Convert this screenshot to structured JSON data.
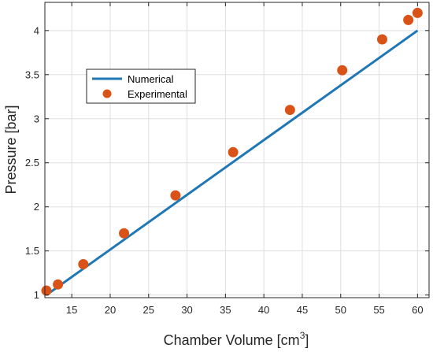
{
  "chart_data": {
    "type": "scatter",
    "xlabel": "Chamber Volume [cm",
    "xlabel_superscript": "3",
    "xlabel_suffix": "]",
    "ylabel": "Pressure [bar]",
    "xlim": [
      11.5,
      61.5
    ],
    "ylim": [
      0.97,
      4.32
    ],
    "x_ticks": [
      15,
      20,
      25,
      30,
      35,
      40,
      45,
      50,
      55,
      60
    ],
    "y_ticks": [
      1,
      1.5,
      2,
      2.5,
      3,
      3.5,
      4
    ],
    "y_tick_labels": [
      "1",
      "1.5",
      "2",
      "2.5",
      "3",
      "3.5",
      "4"
    ],
    "grid": true,
    "legend_position": "upper-left",
    "series": [
      {
        "name": "Numerical",
        "kind": "line",
        "color": "#1f77b4",
        "x": [
          11.7,
          60
        ],
        "y": [
          1.0,
          4.0
        ]
      },
      {
        "name": "Experimental",
        "kind": "markers",
        "color": "#d95319",
        "x": [
          11.7,
          13.2,
          16.5,
          21.8,
          28.5,
          36.0,
          43.4,
          50.2,
          55.4,
          58.8,
          60.0
        ],
        "y": [
          1.05,
          1.12,
          1.35,
          1.7,
          2.13,
          2.62,
          3.1,
          3.55,
          3.9,
          4.12,
          4.2
        ]
      }
    ]
  }
}
